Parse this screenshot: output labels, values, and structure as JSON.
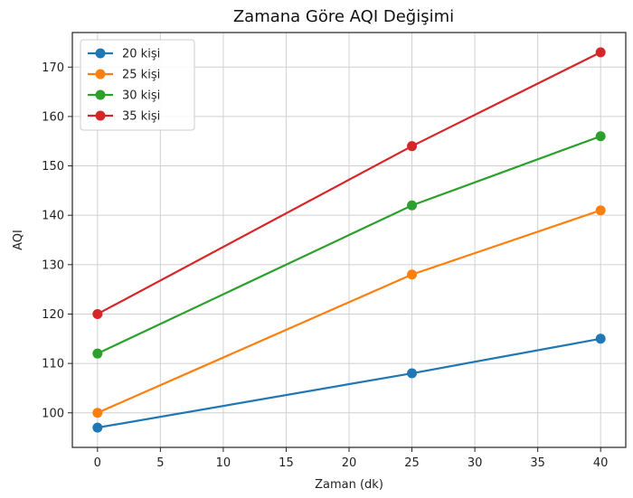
{
  "chart_data": {
    "type": "line",
    "title": "Zamana Göre AQI Değişimi",
    "xlabel": "Zaman (dk)",
    "ylabel": "AQI",
    "x": [
      0,
      25,
      40
    ],
    "xlim": [
      -2,
      42
    ],
    "ylim": [
      93,
      177
    ],
    "xticks": [
      0,
      5,
      10,
      15,
      20,
      25,
      30,
      35,
      40
    ],
    "yticks": [
      100,
      110,
      120,
      130,
      140,
      150,
      160,
      170
    ],
    "grid": true,
    "legend_position": "top-left",
    "series": [
      {
        "name": "20 kişi",
        "values": [
          97,
          108,
          115
        ],
        "color": "#1f77b4"
      },
      {
        "name": "25 kişi",
        "values": [
          100,
          128,
          141
        ],
        "color": "#ff7f0e"
      },
      {
        "name": "30 kişi",
        "values": [
          112,
          142,
          156
        ],
        "color": "#2ca02c"
      },
      {
        "name": "35 kişi",
        "values": [
          120,
          154,
          173
        ],
        "color": "#d62728"
      }
    ]
  }
}
